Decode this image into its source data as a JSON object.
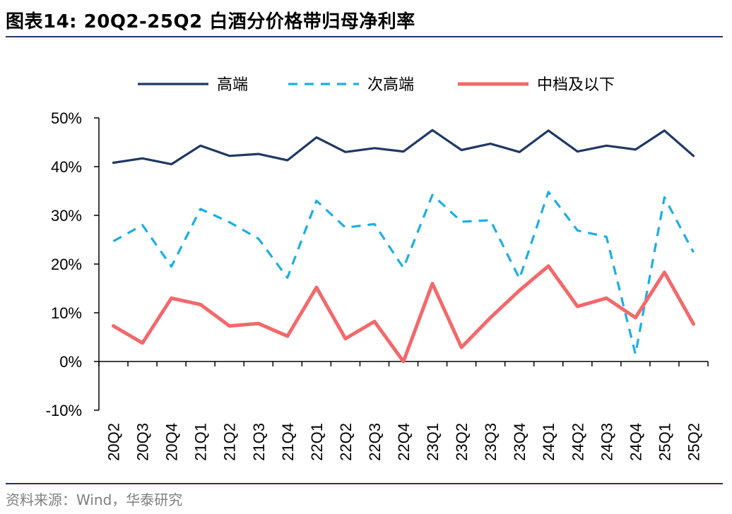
{
  "title": "图表14:  20Q2-25Q2 白酒分价格带归母净利率",
  "source": "资料来源：Wind，华泰研究",
  "chart_data": {
    "type": "line",
    "categories": [
      "20Q2",
      "20Q3",
      "20Q4",
      "21Q1",
      "21Q2",
      "21Q3",
      "21Q4",
      "22Q1",
      "22Q2",
      "22Q3",
      "22Q4",
      "23Q1",
      "23Q2",
      "23Q3",
      "23Q4",
      "24Q1",
      "24Q2",
      "24Q3",
      "24Q4",
      "25Q1",
      "25Q2"
    ],
    "ylim": [
      -10,
      50
    ],
    "yticks": [
      "-10%",
      "0%",
      "10%",
      "20%",
      "30%",
      "40%",
      "50%"
    ],
    "legend_position": "top",
    "series": [
      {
        "name": "高端",
        "color": "#1f3864",
        "style": "solid",
        "values": [
          40.8,
          41.7,
          40.5,
          44.3,
          42.2,
          42.6,
          41.3,
          46.0,
          43.0,
          43.8,
          43.1,
          47.5,
          43.4,
          44.7,
          43.0,
          47.4,
          43.1,
          44.3,
          43.5,
          47.4,
          42.2
        ]
      },
      {
        "name": "次高端",
        "color": "#1aaee5",
        "style": "dashed",
        "values": [
          24.7,
          28.0,
          19.5,
          31.3,
          28.6,
          25.2,
          17.2,
          33.0,
          27.5,
          28.2,
          19.2,
          34.2,
          28.7,
          29.0,
          17.0,
          34.8,
          26.9,
          25.6,
          1.5,
          33.7,
          22.4
        ]
      },
      {
        "name": "中档及以下",
        "color": "#f4686b",
        "style": "solid",
        "values": [
          7.3,
          3.8,
          13.0,
          11.7,
          7.3,
          7.8,
          5.2,
          15.2,
          4.7,
          8.2,
          0.0,
          16.0,
          2.9,
          9.0,
          14.6,
          19.6,
          11.3,
          13.0,
          9.0,
          18.3,
          7.7
        ]
      }
    ]
  }
}
